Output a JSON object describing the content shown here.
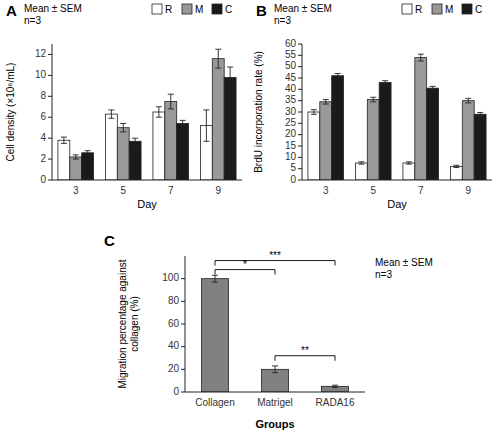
{
  "chart_data": [
    {
      "type": "bar",
      "title": "A",
      "categories": [
        "3",
        "5",
        "7",
        "9"
      ],
      "series": [
        {
          "name": "R",
          "color": "#ffffff",
          "values": [
            3.8,
            6.3,
            6.5,
            5.2
          ],
          "errors": [
            0.3,
            0.4,
            0.5,
            1.5
          ]
        },
        {
          "name": "M",
          "color": "#999999",
          "values": [
            2.2,
            5.0,
            7.5,
            11.6
          ],
          "errors": [
            0.2,
            0.4,
            0.7,
            0.9
          ]
        },
        {
          "name": "C",
          "color": "#1a1a1a",
          "values": [
            2.6,
            3.7,
            5.4,
            9.8
          ],
          "errors": [
            0.2,
            0.3,
            0.3,
            1.0
          ]
        }
      ],
      "xlabel": "Day",
      "ylabel": "Cell density (×10⁶/mL)",
      "ylim": [
        0,
        13
      ],
      "yticks": [
        0,
        2,
        4,
        6,
        8,
        10,
        12
      ],
      "annotation": "Mean ± SEM\nn=3",
      "legend": "upper right",
      "grid": false
    },
    {
      "type": "bar",
      "title": "B",
      "categories": [
        "3",
        "5",
        "7",
        "9"
      ],
      "series": [
        {
          "name": "R",
          "color": "#ffffff",
          "values": [
            30,
            7.5,
            7.5,
            6.0
          ],
          "errors": [
            1.0,
            0.5,
            0.5,
            0.5
          ]
        },
        {
          "name": "M",
          "color": "#999999",
          "values": [
            34.5,
            35.5,
            54,
            35
          ],
          "errors": [
            1.0,
            1.0,
            1.5,
            1.0
          ]
        },
        {
          "name": "C",
          "color": "#1a1a1a",
          "values": [
            46,
            43,
            40.5,
            29
          ],
          "errors": [
            1.0,
            0.8,
            0.8,
            0.8
          ]
        }
      ],
      "xlabel": "Day",
      "ylabel": "BrdU incorporation rate (%)",
      "ylim": [
        0,
        60
      ],
      "yticks": [
        0,
        5,
        10,
        15,
        20,
        25,
        30,
        35,
        40,
        45,
        50,
        55,
        60
      ],
      "annotation": "Mean ± SEM\nn=3",
      "legend": "upper right",
      "grid": false
    },
    {
      "type": "bar",
      "title": "C",
      "categories": [
        "Collagen",
        "Matrigel",
        "RADA16"
      ],
      "values": [
        100,
        20,
        5
      ],
      "errors": [
        3,
        3,
        1
      ],
      "color": "#808080",
      "xlabel": "Groups",
      "ylabel": "Migration percentage against\ncollagen (%)",
      "ylim": [
        0,
        120
      ],
      "yticks": [
        0,
        20,
        40,
        60,
        80,
        100
      ],
      "annotation": "Mean ± SEM\nn=3",
      "brackets": [
        {
          "from": "Collagen",
          "to": "Matrigel",
          "y": 108,
          "label": "*"
        },
        {
          "from": "Collagen",
          "to": "RADA16",
          "y": 116,
          "label": "***"
        },
        {
          "from": "Matrigel",
          "to": "RADA16",
          "y": 32,
          "label": "**"
        }
      ],
      "grid": false
    }
  ]
}
